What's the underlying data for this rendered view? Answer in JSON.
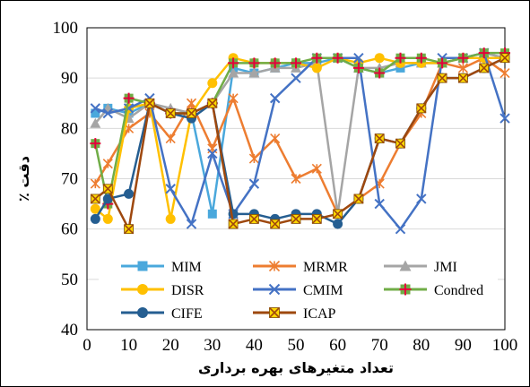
{
  "chart_data": {
    "type": "line",
    "xlabel": "تعداد متغیرهای بهره برداری",
    "ylabel": "دقت ٪",
    "xlim": [
      0,
      100
    ],
    "ylim": [
      40,
      100
    ],
    "x_ticks": [
      "0",
      "10",
      "20",
      "30",
      "40",
      "50",
      "60",
      "70",
      "80",
      "90",
      "100"
    ],
    "y_ticks": [
      "40",
      "50",
      "60",
      "70",
      "80",
      "90",
      "100"
    ],
    "grid": "horizontal",
    "legend_placement": "lower-center",
    "x": [
      2,
      5,
      10,
      15,
      20,
      25,
      30,
      35,
      40,
      45,
      50,
      55,
      60,
      65,
      70,
      75,
      80,
      85,
      90,
      95,
      100
    ],
    "series": [
      {
        "name": "MIM",
        "color": "#4aa8dc",
        "marker": "square",
        "values": [
          83,
          84,
          83,
          85,
          83,
          83,
          63,
          92,
          91,
          92,
          93,
          93,
          94,
          92,
          91,
          92,
          93,
          93,
          94,
          95,
          94
        ]
      },
      {
        "name": "MRMR",
        "color": "#ed7d31",
        "marker": "star",
        "values": [
          69,
          73,
          80,
          83,
          78,
          85,
          76,
          86,
          74,
          78,
          70,
          72,
          63,
          66,
          69,
          77,
          83,
          93,
          92,
          94,
          91
        ]
      },
      {
        "name": "JMI",
        "color": "#a5a5a5",
        "marker": "triangle",
        "values": [
          81,
          84,
          82,
          85,
          84,
          83,
          85,
          91,
          91,
          92,
          92,
          93,
          63,
          92,
          92,
          93,
          93,
          93,
          94,
          95,
          94
        ]
      },
      {
        "name": "DISR",
        "color": "#ffc000",
        "marker": "circle",
        "values": [
          64,
          62,
          84,
          85,
          62,
          83,
          89,
          94,
          93,
          93,
          93,
          92,
          94,
          93,
          94,
          93,
          93,
          93,
          94,
          94,
          94
        ]
      },
      {
        "name": "CMIM",
        "color": "#4472c4",
        "marker": "x",
        "values": [
          84,
          83,
          84,
          86,
          68,
          61,
          75,
          63,
          69,
          86,
          90,
          94,
          94,
          94,
          65,
          60,
          66,
          94,
          94,
          95,
          82
        ]
      },
      {
        "name": "Condred",
        "color": "#70ad47",
        "marker": "plus",
        "values": [
          77,
          65,
          86,
          85,
          83,
          83,
          85,
          93,
          93,
          93,
          93,
          94,
          94,
          92,
          91,
          94,
          94,
          93,
          94,
          95,
          95
        ]
      },
      {
        "name": "CIFE",
        "color": "#255e91",
        "marker": "circle",
        "values": [
          62,
          66,
          67,
          85,
          83,
          82,
          85,
          63,
          63,
          62,
          63,
          63,
          61,
          66,
          78,
          77,
          84,
          90,
          90,
          92,
          94
        ]
      },
      {
        "name": "ICAP",
        "color": "#9e480e",
        "marker": "starbox",
        "values": [
          66,
          68,
          60,
          85,
          83,
          83,
          85,
          61,
          62,
          61,
          62,
          62,
          63,
          66,
          78,
          77,
          84,
          90,
          90,
          92,
          94
        ]
      }
    ]
  }
}
